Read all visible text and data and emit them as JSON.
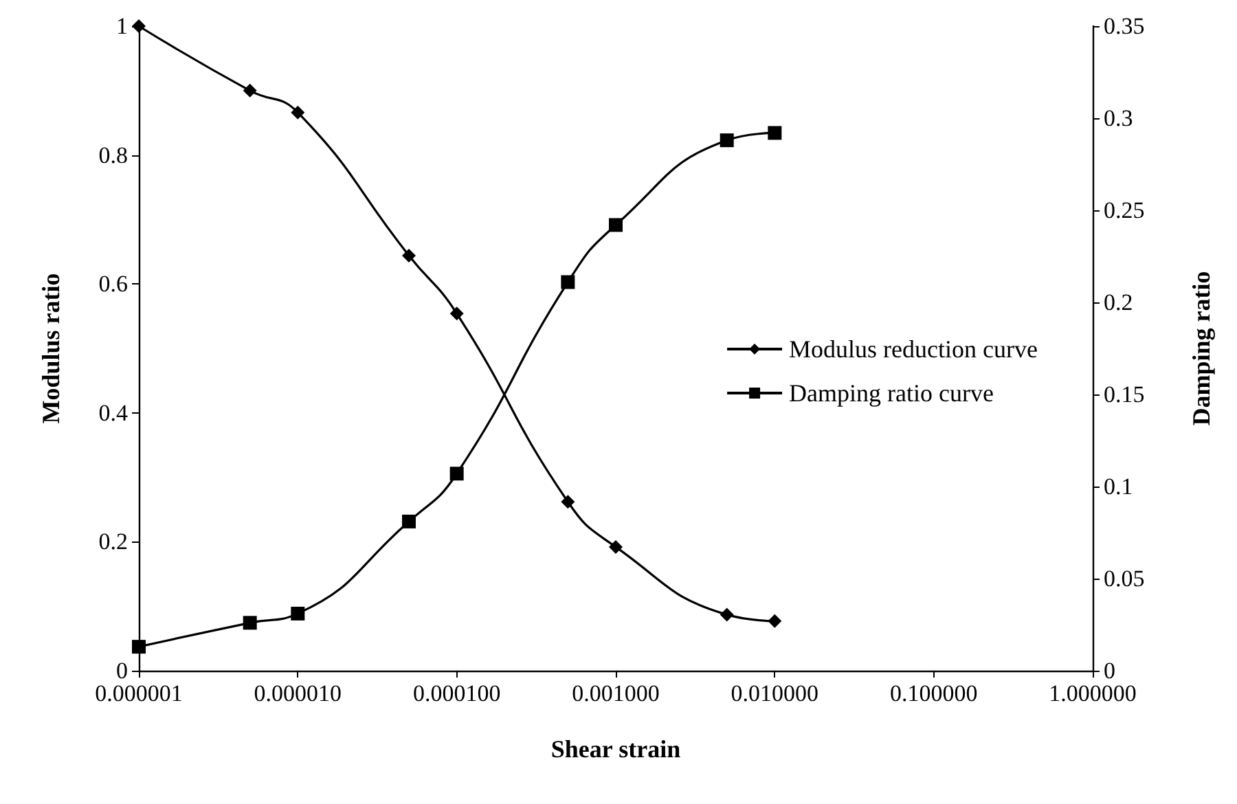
{
  "chart_data": {
    "type": "line",
    "xlabel": "Shear strain",
    "ylabel": "Modulus ratio",
    "y2label": "Damping ratio",
    "log": "x",
    "x": [
      1e-06,
      5e-06,
      1e-05,
      5e-05,
      0.0001,
      0.0005,
      0.001,
      0.005,
      0.01
    ],
    "xlim": [
      1e-06,
      1
    ],
    "xticks": [
      {
        "value": 1e-06,
        "label": "0.000001"
      },
      {
        "value": 1e-05,
        "label": "0.000010"
      },
      {
        "value": 0.0001,
        "label": "0.000100"
      },
      {
        "value": 0.001,
        "label": "0.001000"
      },
      {
        "value": 0.01,
        "label": "0.010000"
      },
      {
        "value": 0.1,
        "label": "0.100000"
      },
      {
        "value": 1,
        "label": "1.000000"
      }
    ],
    "ylim": [
      0,
      1
    ],
    "yticks": [
      0,
      0.2,
      0.4,
      0.6,
      0.8,
      1
    ],
    "y2lim": [
      0,
      0.35
    ],
    "y2ticks": [
      0,
      0.05,
      0.1,
      0.15,
      0.2,
      0.25,
      0.3,
      0.35
    ],
    "legend": "right",
    "grid": false,
    "line_style": "solid",
    "series": [
      {
        "name": "Modulus reduction curve",
        "color": "#000000",
        "marker": "diamond",
        "values": [
          1.0,
          0.9,
          0.866,
          0.644,
          0.554,
          0.262,
          0.192,
          0.087,
          0.077
        ]
      },
      {
        "name": "Damping ratio curve",
        "color": "#000000",
        "marker": "square",
        "axis": "y2",
        "values": [
          0.013,
          0.026,
          0.031,
          0.081,
          0.107,
          0.211,
          0.242,
          0.288,
          0.292
        ]
      }
    ]
  }
}
